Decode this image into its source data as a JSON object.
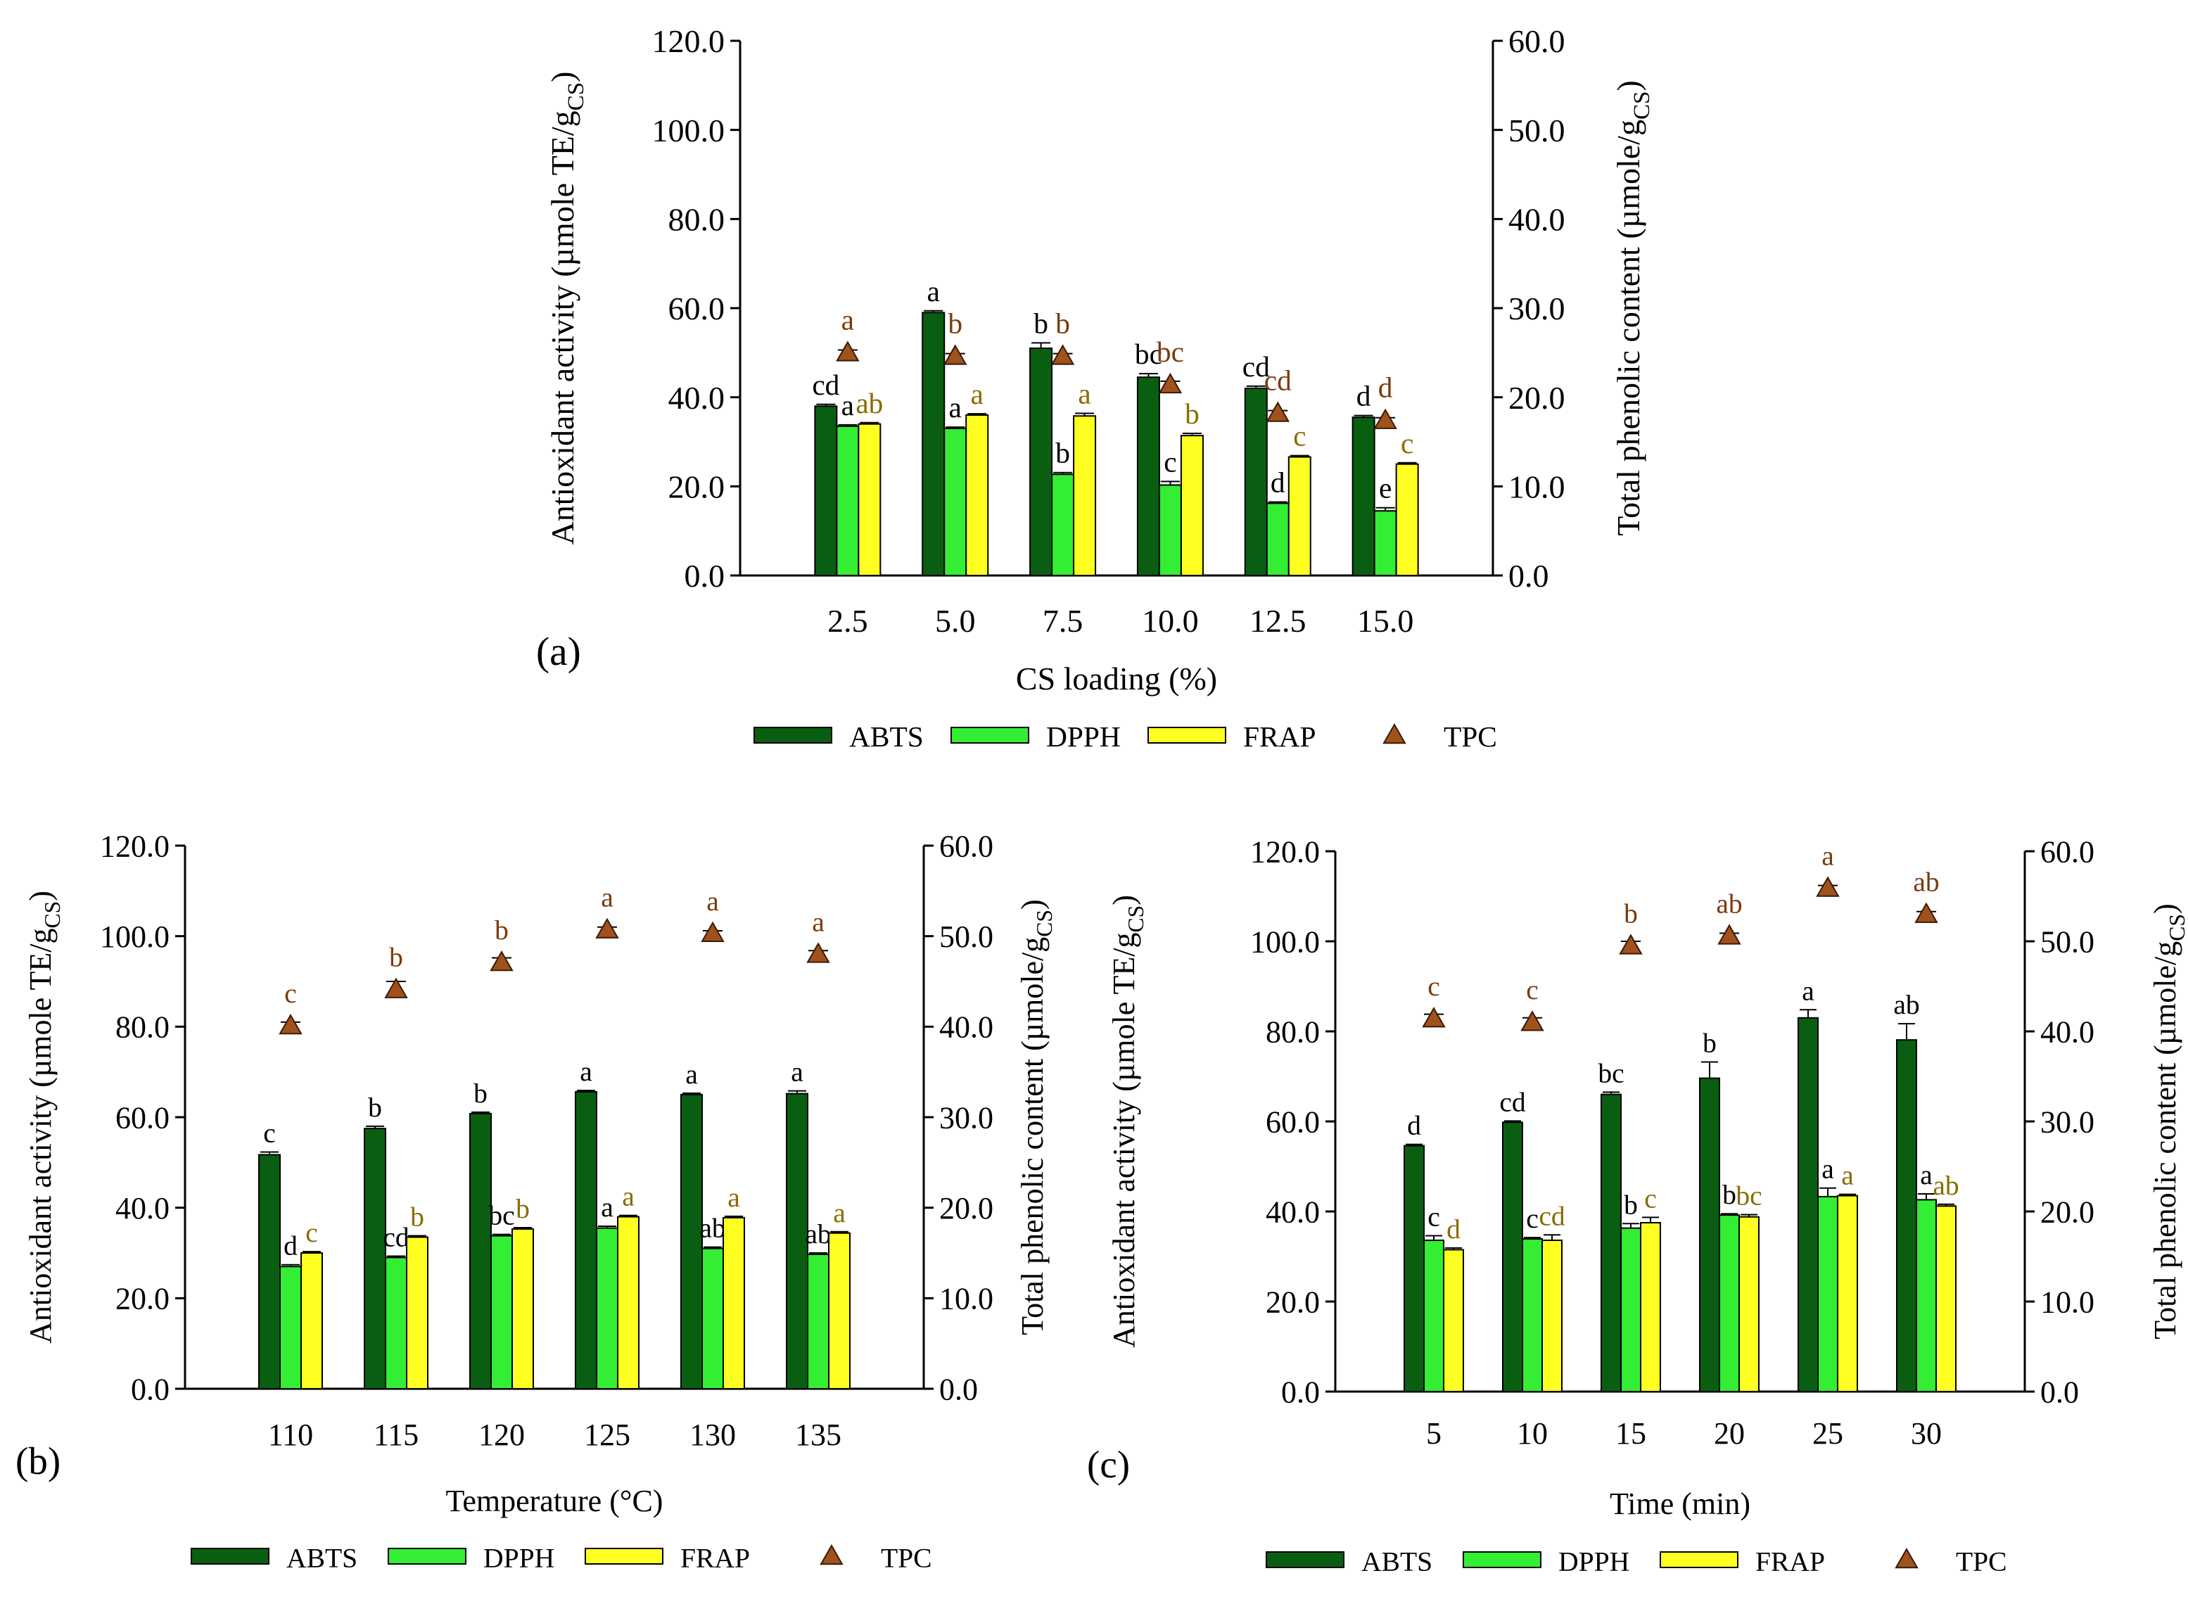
{
  "figure": {
    "colors": {
      "ABTS": "#0a5e12",
      "DPPH": "#33ee33",
      "FRAP": "#ffff22",
      "TPC": "#a0521c",
      "letter_ABTS": "#000000",
      "letter_DPPH": "#000000",
      "letter_FRAP": "#8a6d00",
      "letter_TPC": "#7a3c0e"
    }
  },
  "chart_data": [
    {
      "type": "bar",
      "panel_label": "(a)",
      "xlabel": "CS loading (%)",
      "ylabel_left": "Antioxidant activity (µmole TE/g",
      "ylabel_left_sub": "CS",
      "ylabel_left_close": ")",
      "ylabel_right": "Total phenolic content (µmole/g",
      "ylabel_right_sub": "CS",
      "ylabel_right_close": ")",
      "ylim": [
        0,
        120
      ],
      "ylim_right": [
        0,
        60
      ],
      "yticks": [
        "0.0",
        "20.0",
        "40.0",
        "60.0",
        "80.0",
        "100.0",
        "120.0"
      ],
      "yticks_right": [
        "0.0",
        "10.0",
        "20.0",
        "30.0",
        "40.0",
        "50.0",
        "60.0"
      ],
      "categories": [
        "2.5",
        "5.0",
        "7.5",
        "10.0",
        "12.5",
        "15.0"
      ],
      "series": [
        {
          "name": "ABTS",
          "values": [
            38.0,
            59.0,
            51.0,
            44.5,
            42.0,
            35.5
          ],
          "errors": [
            0.4,
            0.4,
            1.2,
            0.8,
            0.5,
            0.4
          ],
          "letters": [
            "cd",
            "a",
            "b",
            "bc",
            "cd",
            "d"
          ]
        },
        {
          "name": "DPPH",
          "values": [
            33.5,
            33.0,
            22.7,
            20.3,
            16.2,
            14.5
          ],
          "errors": [
            0.3,
            0.3,
            0.4,
            0.8,
            0.3,
            0.7
          ],
          "letters": [
            "a",
            "a",
            "b",
            "c",
            "d",
            "e"
          ]
        },
        {
          "name": "FRAP",
          "values": [
            34.0,
            36.0,
            35.8,
            31.4,
            26.6,
            25.0
          ],
          "errors": [
            0.3,
            0.3,
            0.6,
            0.5,
            0.3,
            0.3
          ],
          "letters": [
            "ab",
            "a",
            "a",
            "b",
            "c",
            "c"
          ]
        }
      ],
      "tpc": {
        "name": "TPC",
        "values": [
          25.0,
          24.6,
          24.6,
          21.4,
          18.2,
          17.4
        ],
        "errors": [
          0.3,
          0.3,
          0.3,
          0.4,
          0.3,
          0.3
        ],
        "letters": [
          "a",
          "b",
          "b",
          "bc",
          "cd",
          "d"
        ]
      },
      "legend": [
        "ABTS",
        "DPPH",
        "FRAP",
        "TPC"
      ]
    },
    {
      "type": "bar",
      "panel_label": "(b)",
      "xlabel": "Temperature (°C)",
      "ylabel_left": "Antioxidant activity (µmole TE/g",
      "ylabel_left_sub": "CS",
      "ylabel_left_close": ")",
      "ylabel_right": "Total phenolic content (µmole/g",
      "ylabel_right_sub": "CS",
      "ylabel_right_close": ")",
      "ylim": [
        0,
        120
      ],
      "ylim_right": [
        0,
        60
      ],
      "yticks": [
        "0.0",
        "20.0",
        "40.0",
        "60.0",
        "80.0",
        "100.0",
        "120.0"
      ],
      "yticks_right": [
        "0.0",
        "10.0",
        "20.0",
        "30.0",
        "40.0",
        "50.0",
        "60.0"
      ],
      "categories": [
        "110",
        "115",
        "120",
        "125",
        "130",
        "135"
      ],
      "series": [
        {
          "name": "ABTS",
          "values": [
            51.7,
            57.5,
            60.8,
            65.6,
            65.0,
            65.2
          ],
          "errors": [
            0.6,
            0.5,
            0.3,
            0.3,
            0.3,
            0.6
          ],
          "letters": [
            "c",
            "b",
            "b",
            "a",
            "a",
            "a"
          ]
        },
        {
          "name": "DPPH",
          "values": [
            27.0,
            29.0,
            33.8,
            35.5,
            31.0,
            29.7
          ],
          "errors": [
            0.4,
            0.3,
            0.3,
            0.4,
            0.3,
            0.3
          ],
          "letters": [
            "d",
            "cd",
            "bc",
            "a",
            "ab",
            "ab"
          ]
        },
        {
          "name": "FRAP",
          "values": [
            30.0,
            33.5,
            35.3,
            38.0,
            37.8,
            34.4
          ],
          "errors": [
            0.3,
            0.3,
            0.3,
            0.3,
            0.3,
            0.3
          ],
          "letters": [
            "c",
            "b",
            "b",
            "a",
            "a",
            "a"
          ]
        }
      ],
      "tpc": {
        "name": "TPC",
        "values": [
          40.1,
          44.1,
          47.1,
          50.7,
          50.3,
          48.0
        ],
        "errors": [
          0.4,
          0.9,
          0.5,
          0.3,
          0.3,
          0.4
        ],
        "letters": [
          "c",
          "b",
          "b",
          "a",
          "a",
          "a"
        ]
      },
      "legend": [
        "ABTS",
        "DPPH",
        "FRAP",
        "TPC"
      ]
    },
    {
      "type": "bar",
      "panel_label": "(c)",
      "xlabel": "Time (min)",
      "ylabel_left": "Antioxidant activity (µmole TE/g",
      "ylabel_left_sub": "CS",
      "ylabel_left_close": ")",
      "ylabel_right": "Total phenolic content (µmole/g",
      "ylabel_right_sub": "CS",
      "ylabel_right_close": ")",
      "ylim": [
        0,
        120
      ],
      "ylim_right": [
        0,
        60
      ],
      "yticks": [
        "0.0",
        "20.0",
        "40.0",
        "60.0",
        "80.0",
        "100.0",
        "120.0"
      ],
      "yticks_right": [
        "0.0",
        "10.0",
        "20.0",
        "30.0",
        "40.0",
        "50.0",
        "60.0"
      ],
      "categories": [
        "5",
        "10",
        "15",
        "20",
        "25",
        "30"
      ],
      "series": [
        {
          "name": "ABTS",
          "values": [
            54.6,
            59.8,
            66.0,
            69.6,
            83.0,
            78.1
          ],
          "errors": [
            0.3,
            0.3,
            0.5,
            3.6,
            1.8,
            3.6
          ],
          "letters": [
            "d",
            "cd",
            "bc",
            "b",
            "a",
            "ab"
          ]
        },
        {
          "name": "DPPH",
          "values": [
            33.6,
            33.9,
            36.3,
            39.2,
            43.3,
            42.6
          ],
          "errors": [
            1.0,
            0.3,
            1.0,
            0.3,
            1.9,
            1.3
          ],
          "letters": [
            "c",
            "c",
            "b",
            "b",
            "a",
            "a"
          ]
        },
        {
          "name": "FRAP",
          "values": [
            31.5,
            33.6,
            37.5,
            38.8,
            43.5,
            41.2
          ],
          "errors": [
            0.4,
            1.2,
            1.2,
            0.5,
            0.3,
            0.4
          ],
          "letters": [
            "d",
            "cd",
            "c",
            "bc",
            "a",
            "ab"
          ]
        }
      ],
      "tpc": {
        "name": "TPC",
        "values": [
          41.4,
          41.0,
          49.5,
          50.6,
          55.9,
          53.0
        ],
        "errors": [
          0.5,
          0.5,
          0.5,
          0.3,
          0.3,
          0.3
        ],
        "letters": [
          "c",
          "c",
          "b",
          "ab",
          "a",
          "ab"
        ]
      },
      "legend": [
        "ABTS",
        "DPPH",
        "FRAP",
        "TPC"
      ]
    }
  ]
}
